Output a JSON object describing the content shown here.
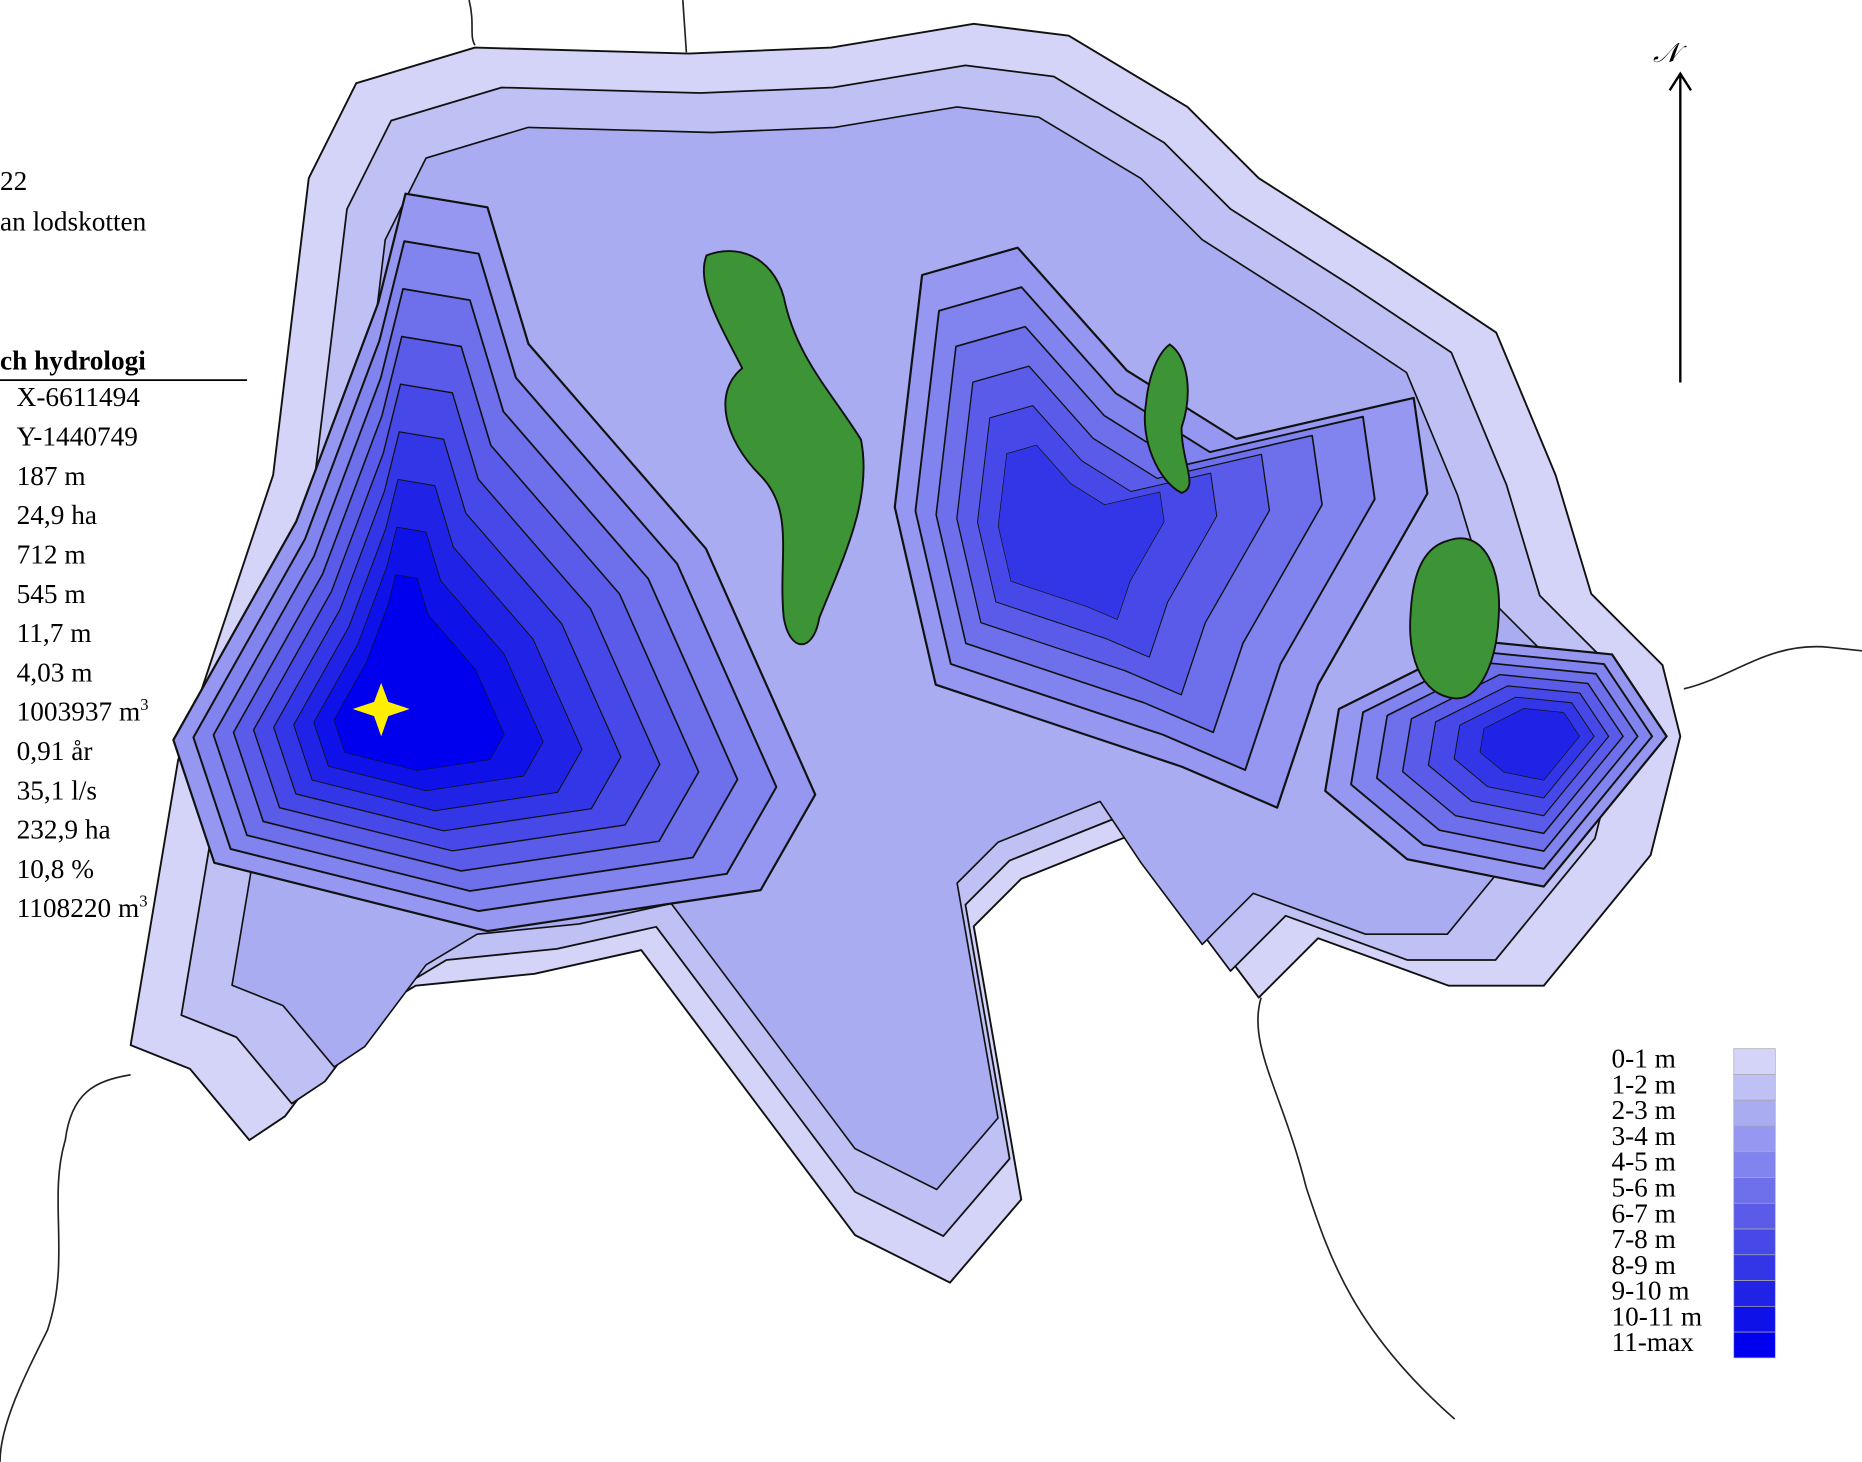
{
  "info": {
    "line1": "22",
    "line2": "an lodskotten",
    "heading": "ch hydrologi",
    "rows": [
      "X-6611494",
      "Y-1440749",
      "187 m",
      "24,9 ha",
      "712 m",
      "545 m",
      "11,7 m",
      "4,03 m",
      {
        "text": "1003937 m",
        "sup": "3"
      },
      "0,91 år",
      "35,1 l/s",
      "232,9 ha",
      "10,8 %",
      {
        "text": "1108220 m",
        "sup": "3"
      }
    ]
  },
  "north": "𝒩",
  "legend": [
    {
      "label": "0-1 m",
      "color": "#d3d4f7"
    },
    {
      "label": "1-2 m",
      "color": "#bfc0f4"
    },
    {
      "label": "2-3 m",
      "color": "#aaacf2"
    },
    {
      "label": "3-4 m",
      "color": "#9597f0"
    },
    {
      "label": "4-5 m",
      "color": "#8183ee"
    },
    {
      "label": "5-6 m",
      "color": "#6d6feb"
    },
    {
      "label": "6-7 m",
      "color": "#5a5ce9"
    },
    {
      "label": "7-8 m",
      "color": "#4649e8"
    },
    {
      "label": "8-9 m",
      "color": "#3336e6"
    },
    {
      "label": "9-10 m",
      "color": "#2023e6"
    },
    {
      "label": "10-11 m",
      "color": "#0f12e8"
    },
    {
      "label": "11-max",
      "color": "#0000ee"
    }
  ]
}
